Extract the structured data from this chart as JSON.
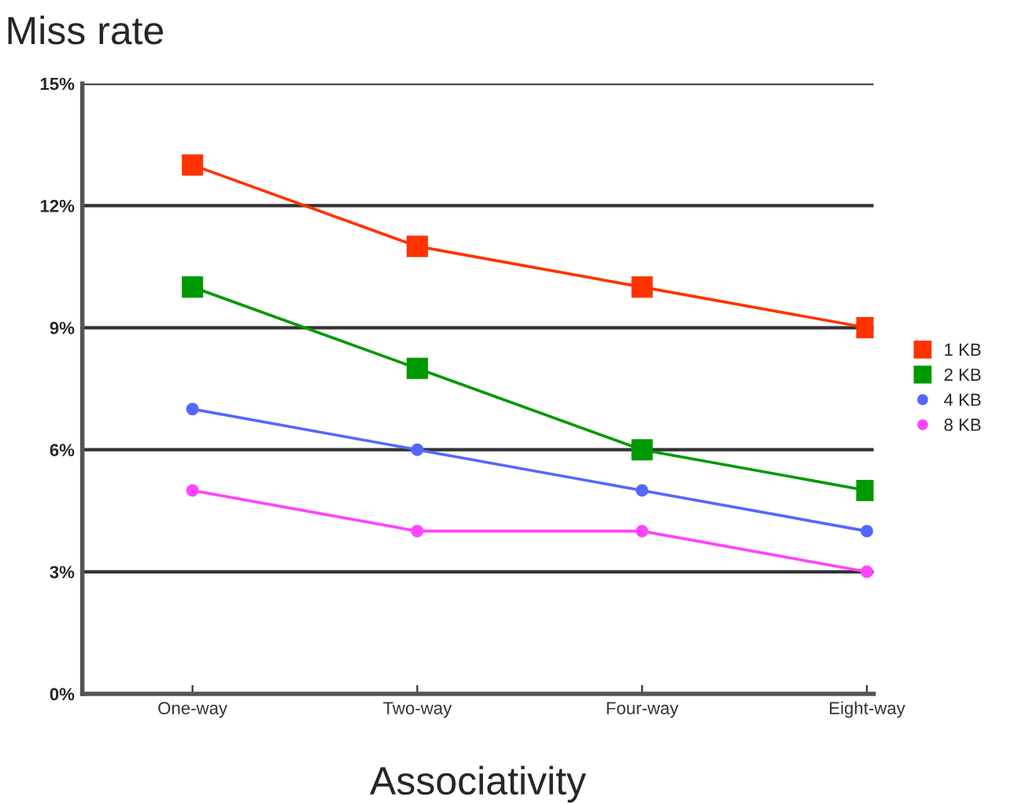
{
  "chart_data": {
    "type": "line",
    "xlabel": "Associativity",
    "ylabel": "Miss rate",
    "categories": [
      "One-way",
      "Two-way",
      "Four-way",
      "Eight-way"
    ],
    "series": [
      {
        "name": "1 KB",
        "color": "#ff3300",
        "marker": "square",
        "values": [
          13,
          11,
          10,
          9
        ]
      },
      {
        "name": "2 KB",
        "color": "#009900",
        "marker": "square",
        "values": [
          10,
          8,
          6,
          5
        ]
      },
      {
        "name": "4 KB",
        "color": "#5566ff",
        "marker": "circle",
        "values": [
          7,
          6,
          5,
          4
        ]
      },
      {
        "name": "8 KB",
        "color": "#ff44ff",
        "marker": "circle",
        "values": [
          5,
          4,
          4,
          3
        ]
      }
    ],
    "ylim": [
      0,
      15
    ],
    "yticks": [
      {
        "value": 0,
        "label": "0%"
      },
      {
        "value": 3,
        "label": "3%"
      },
      {
        "value": 6,
        "label": "6%"
      },
      {
        "value": 9,
        "label": "9%"
      },
      {
        "value": 12,
        "label": "12%"
      },
      {
        "value": 15,
        "label": "15%"
      }
    ],
    "grid": "y",
    "legend": "right",
    "line_style": "solid"
  }
}
